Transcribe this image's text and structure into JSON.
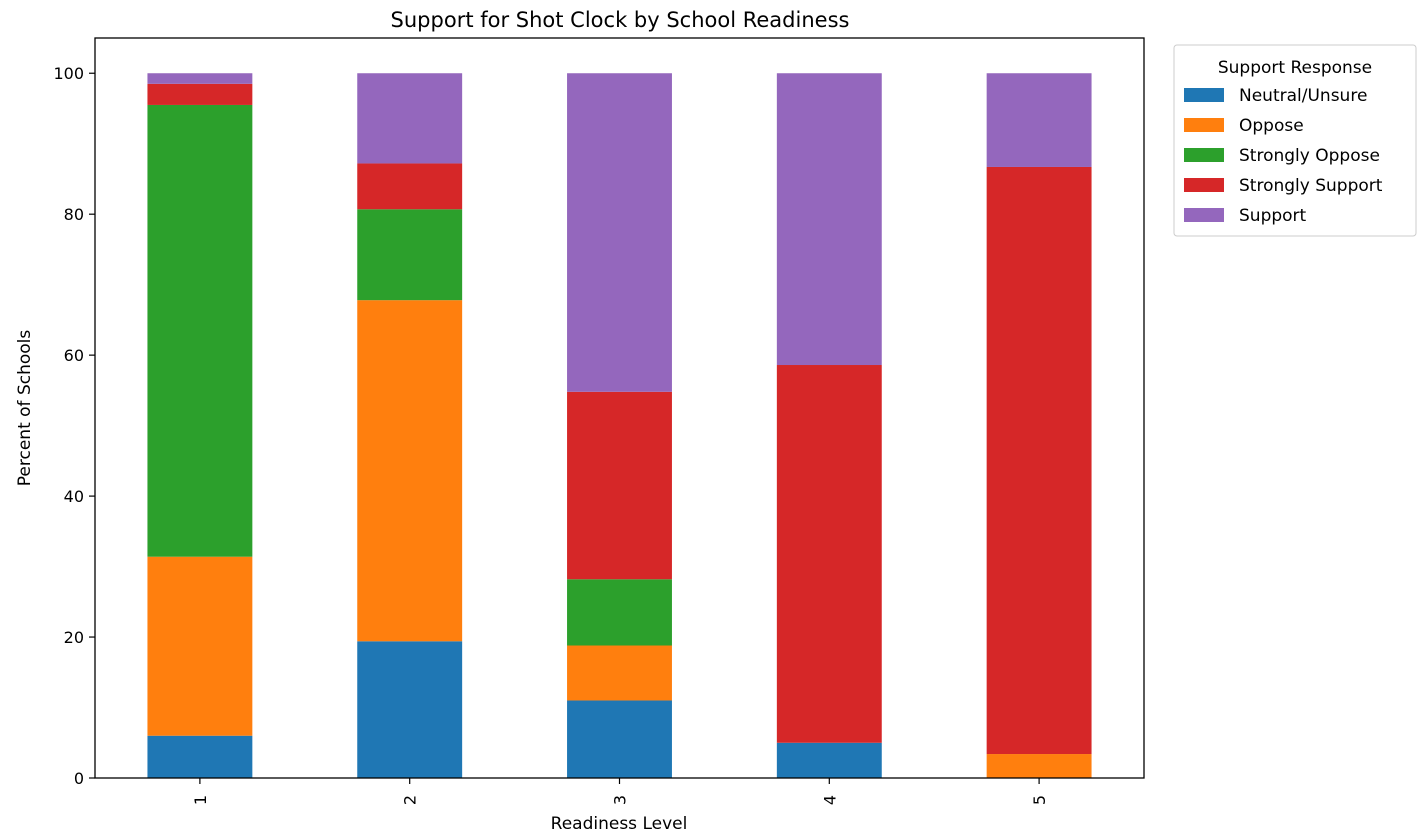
{
  "chart_data": {
    "type": "bar",
    "stacked": true,
    "title": "Support for Shot Clock by School Readiness",
    "xlabel": "Readiness Level",
    "ylabel": "Percent of Schools",
    "categories": [
      "1",
      "2",
      "3",
      "4",
      "5"
    ],
    "ylim": [
      0,
      105
    ],
    "yticks": [
      0,
      20,
      40,
      60,
      80,
      100
    ],
    "grid": false,
    "legend": {
      "title": "Support Response",
      "placement": "upper-right-outside"
    },
    "series": [
      {
        "name": "Neutral/Unsure",
        "color": "#1f77b4",
        "values": [
          6.0,
          19.4,
          11.0,
          5.0,
          0.0
        ]
      },
      {
        "name": "Oppose",
        "color": "#ff7f0e",
        "values": [
          25.4,
          48.4,
          7.8,
          0.0,
          3.4
        ]
      },
      {
        "name": "Strongly Oppose",
        "color": "#2ca02c",
        "values": [
          64.1,
          12.9,
          9.4,
          0.0,
          0.0
        ]
      },
      {
        "name": "Strongly Support",
        "color": "#d62728",
        "values": [
          3.0,
          6.5,
          26.6,
          53.6,
          83.3
        ]
      },
      {
        "name": "Support",
        "color": "#9467bd",
        "values": [
          1.5,
          12.8,
          45.2,
          41.4,
          13.3
        ]
      }
    ]
  }
}
